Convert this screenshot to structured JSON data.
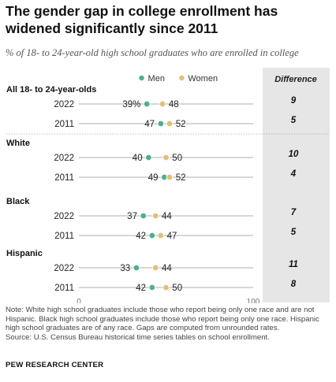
{
  "title": "The gender gap in college enrollment has widened significantly since 2011",
  "subtitle": "% of 18- to 24-year-old high school graduates who are enrolled in college",
  "note": "Note: White high school graduates include those who report being only one race and are not Hispanic. Black high school graduates include those who report being only one race. Hispanic high school graduates are of any race. Gaps are computed from unrounded rates.",
  "source_line": "Source: U.S. Census Bureau historical time series tables on school enrollment.",
  "brand": "PEW RESEARCH CENTER",
  "colors": {
    "men": "#4fae92",
    "women": "#e0c07a",
    "line": "#bfbfbf",
    "difference_panel": "#e6e6e6"
  },
  "chart_data": {
    "type": "dot",
    "legend": [
      "Men",
      "Women"
    ],
    "difference_header": "Difference",
    "xlim": [
      0,
      100
    ],
    "x_ticks": [
      "0",
      "100"
    ],
    "groups": [
      {
        "name": "All 18- to 24-year-olds",
        "rows": [
          {
            "year": "2022",
            "men": 39,
            "men_label": "39%",
            "women": 48,
            "women_label": "48",
            "difference": "9"
          },
          {
            "year": "2011",
            "men": 47,
            "men_label": "47",
            "women": 52,
            "women_label": "52",
            "difference": "5"
          }
        ]
      },
      {
        "name": "White",
        "rows": [
          {
            "year": "2022",
            "men": 40,
            "men_label": "40",
            "women": 50,
            "women_label": "50",
            "difference": "10"
          },
          {
            "year": "2011",
            "men": 49,
            "men_label": "49",
            "women": 52,
            "women_label": "52",
            "difference": "4"
          }
        ]
      },
      {
        "name": "Black",
        "rows": [
          {
            "year": "2022",
            "men": 37,
            "men_label": "37",
            "women": 44,
            "women_label": "44",
            "difference": "7"
          },
          {
            "year": "2011",
            "men": 42,
            "men_label": "42",
            "women": 47,
            "women_label": "47",
            "difference": "5"
          }
        ]
      },
      {
        "name": "Hispanic",
        "rows": [
          {
            "year": "2022",
            "men": 33,
            "men_label": "33",
            "women": 44,
            "women_label": "44",
            "difference": "11"
          },
          {
            "year": "2011",
            "men": 42,
            "men_label": "42",
            "women": 50,
            "women_label": "50",
            "difference": "8"
          }
        ]
      }
    ]
  }
}
